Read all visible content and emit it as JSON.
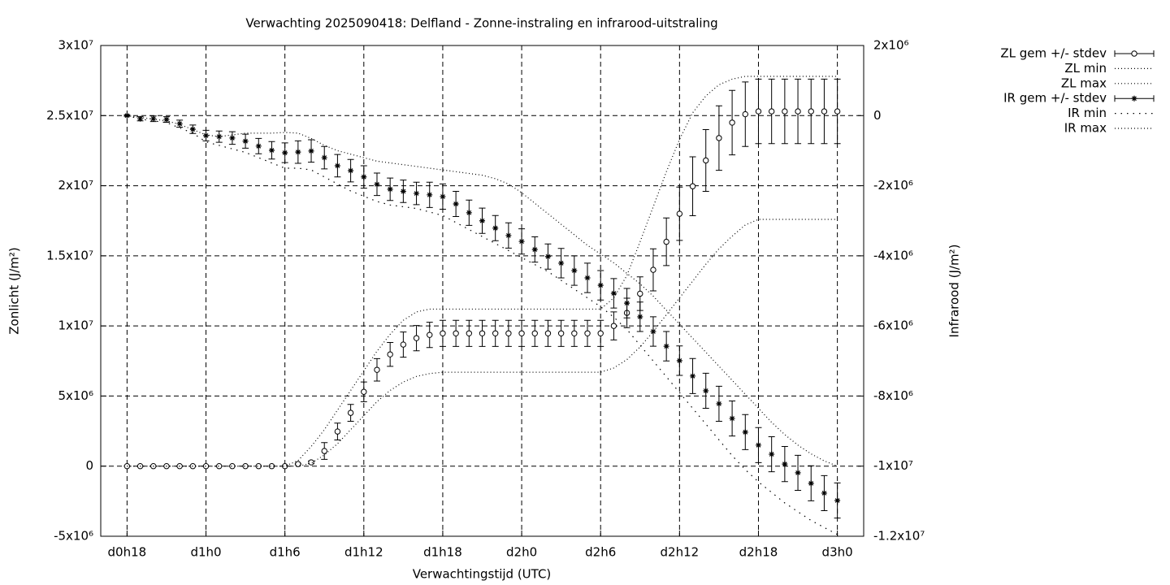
{
  "chart_data": {
    "type": "errorbar-line",
    "title": "Verwachting 2025090418: Delfland - Zonne-instraling en infrarood-uitstraling",
    "xlabel": "Verwachtingstijd (UTC)",
    "ylabel": "Zonlicht (J/m²)",
    "y2label": "Infrarood (J/m²)",
    "x": [
      18,
      19,
      20,
      21,
      22,
      23,
      24,
      25,
      26,
      27,
      28,
      29,
      30,
      31,
      32,
      33,
      34,
      35,
      36,
      37,
      38,
      39,
      40,
      41,
      42,
      43,
      44,
      45,
      46,
      47,
      48,
      49,
      50,
      51,
      52,
      53,
      54,
      55,
      56,
      57,
      58,
      59,
      60,
      61,
      62,
      63,
      64,
      65,
      66,
      67,
      68,
      69,
      70,
      71,
      72
    ],
    "xlim": [
      16,
      74
    ],
    "xticks": [
      {
        "value": 18,
        "label": "d0h18"
      },
      {
        "value": 24,
        "label": "d1h0"
      },
      {
        "value": 30,
        "label": "d1h6"
      },
      {
        "value": 36,
        "label": "d1h12"
      },
      {
        "value": 42,
        "label": "d1h18"
      },
      {
        "value": 48,
        "label": "d2h0"
      },
      {
        "value": 54,
        "label": "d2h6"
      },
      {
        "value": 60,
        "label": "d2h12"
      },
      {
        "value": 66,
        "label": "d2h18"
      },
      {
        "value": 72,
        "label": "d3h0"
      }
    ],
    "ylim": [
      -5000000.0,
      30000000.0
    ],
    "yticks": [
      {
        "value": -5000000.0,
        "label": "-5x10⁶"
      },
      0,
      {
        "value": 5000000.0,
        "label": "5x10⁶"
      },
      {
        "value": 10000000.0,
        "label": "1x10⁷"
      },
      {
        "value": 15000000.0,
        "label": "1.5x10⁷"
      },
      {
        "value": 20000000.0,
        "label": "2x10⁷"
      },
      {
        "value": 25000000.0,
        "label": "2.5x10⁷"
      },
      {
        "value": 30000000.0,
        "label": "3x10⁷"
      }
    ],
    "y2lim": [
      -12000000.0,
      2000000.0
    ],
    "y2ticks": [
      {
        "value": -12000000.0,
        "label": "-1.2x10⁷"
      },
      {
        "value": -10000000.0,
        "label": "-1x10⁷"
      },
      {
        "value": -8000000.0,
        "label": "-8x10⁶"
      },
      {
        "value": -6000000.0,
        "label": "-6x10⁶"
      },
      {
        "value": -4000000.0,
        "label": "-4x10⁶"
      },
      {
        "value": -2000000.0,
        "label": "-2x10⁶"
      },
      0,
      {
        "value": 2000000.0,
        "label": "2x10⁶"
      }
    ],
    "grid": true,
    "legend": "outside-top-right",
    "series": [
      {
        "name": "ZL gem +/- stdev",
        "color": "#000000",
        "style": "errorbar",
        "marker": "circle",
        "values": [
          0,
          0,
          0,
          0,
          0,
          0,
          0,
          0,
          0,
          0,
          0,
          0,
          0,
          150000.0,
          270000.0,
          1080000.0,
          2470000.0,
          3800000.0,
          5300000.0,
          6870000.0,
          7970000.0,
          8670000.0,
          9130000.0,
          9360000.0,
          9470000.0,
          9470000.0,
          9470000.0,
          9470000.0,
          9470000.0,
          9470000.0,
          9470000.0,
          9470000.0,
          9470000.0,
          9470000.0,
          9470000.0,
          9470000.0,
          9470000.0,
          10000000.0,
          10930000.0,
          12300000.0,
          14000000.0,
          16000000.0,
          18000000.0,
          19960000.0,
          21800000.0,
          23400000.0,
          24500000.0,
          25100000.0,
          25300000.0,
          25300000.0,
          25300000.0,
          25300000.0,
          25300000.0,
          25300000.0,
          25300000.0
        ],
        "errors": [
          0,
          0,
          0,
          0,
          0,
          0,
          0,
          0,
          0,
          0,
          0,
          0,
          0,
          50000.0,
          100000.0,
          600000.0,
          600000.0,
          600000.0,
          700000.0,
          800000.0,
          850000.0,
          900000.0,
          900000.0,
          900000.0,
          930000.0,
          930000.0,
          930000.0,
          930000.0,
          930000.0,
          930000.0,
          930000.0,
          930000.0,
          930000.0,
          930000.0,
          930000.0,
          930000.0,
          930000.0,
          1000000.0,
          1050000.0,
          1200000.0,
          1500000.0,
          1700000.0,
          1900000.0,
          2100000.0,
          2200000.0,
          2300000.0,
          2300000.0,
          2300000.0,
          2300000.0,
          2300000.0,
          2300000.0,
          2300000.0,
          2300000.0,
          2300000.0,
          2300000.0
        ]
      },
      {
        "name": "ZL min",
        "color": "#000000",
        "style": "dotted",
        "values": [
          0,
          0,
          0,
          0,
          0,
          0,
          0,
          0,
          0,
          0,
          0,
          0,
          0,
          0,
          200000.0,
          800000.0,
          1600000.0,
          2600000.0,
          3600000.0,
          4600000.0,
          5400000.0,
          6000000.0,
          6400000.0,
          6600000.0,
          6700000.0,
          6700000.0,
          6700000.0,
          6700000.0,
          6700000.0,
          6700000.0,
          6700000.0,
          6700000.0,
          6700000.0,
          6700000.0,
          6700000.0,
          6700000.0,
          6700000.0,
          7000000.0,
          7600000.0,
          8500000.0,
          9600000.0,
          10800000.0,
          12000000.0,
          13200000.0,
          14400000.0,
          15500000.0,
          16400000.0,
          17200000.0,
          17600000.0,
          17600000.0,
          17600000.0,
          17600000.0,
          17600000.0,
          17600000.0,
          17600000.0
        ]
      },
      {
        "name": "ZL max",
        "color": "#000000",
        "style": "dotted",
        "values": [
          0,
          0,
          0,
          0,
          0,
          0,
          0,
          0,
          0,
          0,
          0,
          0,
          0,
          400000.0,
          1400000.0,
          2600000.0,
          4000000.0,
          5400000.0,
          6800000.0,
          8200000.0,
          9400000.0,
          10400000.0,
          11000000.0,
          11200000.0,
          11200000.0,
          11200000.0,
          11200000.0,
          11200000.0,
          11200000.0,
          11200000.0,
          11200000.0,
          11200000.0,
          11200000.0,
          11200000.0,
          11200000.0,
          11200000.0,
          11200000.0,
          12000000.0,
          13600000.0,
          16000000.0,
          18500000.0,
          21000000.0,
          23300000.0,
          25200000.0,
          26400000.0,
          27200000.0,
          27600000.0,
          27800000.0,
          27800000.0,
          27800000.0,
          27800000.0,
          27800000.0,
          27800000.0,
          27800000.0,
          27800000.0
        ]
      },
      {
        "name": "IR gem +/- stdev",
        "color": "#000000",
        "style": "errorbar",
        "marker": "star",
        "axis": "y2",
        "values": [
          0,
          -90000.0,
          -90000.0,
          -110000.0,
          -230000.0,
          -390000.0,
          -570000.0,
          -600000.0,
          -640000.0,
          -730000.0,
          -870000.0,
          -990000.0,
          -1060000.0,
          -1040000.0,
          -1010000.0,
          -1200000.0,
          -1430000.0,
          -1570000.0,
          -1750000.0,
          -1960000.0,
          -2100000.0,
          -2160000.0,
          -2220000.0,
          -2260000.0,
          -2310000.0,
          -2520000.0,
          -2770000.0,
          -3000000.0,
          -3210000.0,
          -3420000.0,
          -3590000.0,
          -3820000.0,
          -4020000.0,
          -4210000.0,
          -4420000.0,
          -4630000.0,
          -4840000.0,
          -5070000.0,
          -5350000.0,
          -5740000.0,
          -6160000.0,
          -6580000.0,
          -6990000.0,
          -7430000.0,
          -7850000.0,
          -8220000.0,
          -8640000.0,
          -9030000.0,
          -9400000.0,
          -9660000.0,
          -9940000.0,
          -10190000.0,
          -10490000.0,
          -10770000.0,
          -10980000.0
        ],
        "errors": [
          20000.0,
          60000.0,
          80000.0,
          80000.0,
          100000.0,
          120000.0,
          150000.0,
          160000.0,
          180000.0,
          200000.0,
          220000.0,
          250000.0,
          280000.0,
          320000.0,
          320000.0,
          320000.0,
          320000.0,
          320000.0,
          320000.0,
          320000.0,
          320000.0,
          320000.0,
          320000.0,
          360000.0,
          360000.0,
          360000.0,
          360000.0,
          360000.0,
          360000.0,
          360000.0,
          360000.0,
          360000.0,
          360000.0,
          420000.0,
          420000.0,
          420000.0,
          420000.0,
          420000.0,
          420000.0,
          420000.0,
          420000.0,
          420000.0,
          420000.0,
          500000.0,
          500000.0,
          500000.0,
          500000.0,
          500000.0,
          500000.0,
          500000.0,
          500000.0,
          500000.0,
          500000.0,
          500000.0,
          500000.0
        ]
      },
      {
        "name": "IR min",
        "color": "#000000",
        "style": "dotted-coarse",
        "axis": "y2",
        "values": [
          0,
          -100000.0,
          -150000.0,
          -200000.0,
          -350000.0,
          -500000.0,
          -750000.0,
          -850000.0,
          -950000.0,
          -1050000.0,
          -1200000.0,
          -1350000.0,
          -1500000.0,
          -1500000.0,
          -1550000.0,
          -1750000.0,
          -1950000.0,
          -2150000.0,
          -2300000.0,
          -2450000.0,
          -2550000.0,
          -2600000.0,
          -2650000.0,
          -2750000.0,
          -2850000.0,
          -3050000.0,
          -3250000.0,
          -3450000.0,
          -3650000.0,
          -3850000.0,
          -4050000.0,
          -4250000.0,
          -4450000.0,
          -4700000.0,
          -4950000.0,
          -5200000.0,
          -5450000.0,
          -5750000.0,
          -6100000.0,
          -6550000.0,
          -7000000.0,
          -7450000.0,
          -7900000.0,
          -8350000.0,
          -8800000.0,
          -9250000.0,
          -9700000.0,
          -10100000.0,
          -10450000.0,
          -10750000.0,
          -11050000.0,
          -11300000.0,
          -11550000.0,
          -11750000.0,
          -11950000.0
        ]
      },
      {
        "name": "IR max",
        "color": "#000000",
        "style": "dotted",
        "axis": "y2",
        "values": [
          0,
          -50000.0,
          -100000.0,
          -150000.0,
          -250000.0,
          -400000.0,
          -550000.0,
          -600000.0,
          -550000.0,
          -500000.0,
          -500000.0,
          -500000.0,
          -480000.0,
          -500000.0,
          -650000.0,
          -850000.0,
          -1000000.0,
          -1100000.0,
          -1200000.0,
          -1300000.0,
          -1350000.0,
          -1400000.0,
          -1450000.0,
          -1500000.0,
          -1550000.0,
          -1600000.0,
          -1650000.0,
          -1700000.0,
          -1800000.0,
          -1950000.0,
          -2200000.0,
          -2500000.0,
          -2800000.0,
          -3100000.0,
          -3400000.0,
          -3700000.0,
          -3950000.0,
          -4200000.0,
          -4500000.0,
          -4800000.0,
          -5150000.0,
          -5550000.0,
          -5950000.0,
          -6350000.0,
          -6750000.0,
          -7150000.0,
          -7550000.0,
          -7950000.0,
          -8350000.0,
          -8750000.0,
          -9100000.0,
          -9400000.0,
          -9650000.0,
          -9850000.0,
          -10000000.0
        ]
      }
    ]
  }
}
